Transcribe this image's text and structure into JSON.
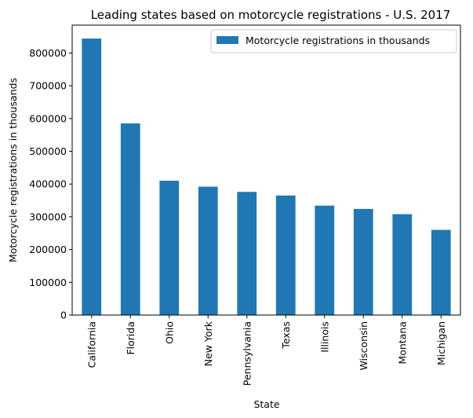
{
  "chart_data": {
    "type": "bar",
    "title": "Leading states based on motorcycle registrations - U.S. 2017",
    "xlabel": "State",
    "ylabel": "Motorcycle registrations in thousands",
    "categories": [
      "California",
      "Florida",
      "Ohio",
      "New York",
      "Pennsylvania",
      "Texas",
      "Illinois",
      "Wisconsin",
      "Montana",
      "Michigan"
    ],
    "series": [
      {
        "name": "Motorcycle registrations in thousands",
        "values": [
          844000,
          585000,
          410000,
          392000,
          376000,
          365000,
          334000,
          324000,
          308000,
          260000
        ],
        "color": "#1f77b4"
      }
    ],
    "ylim": [
      0,
      885000
    ],
    "yticks": [
      0,
      100000,
      200000,
      300000,
      400000,
      500000,
      600000,
      700000,
      800000
    ],
    "grid": false,
    "legend_position": "top-right",
    "label_rotation": "vertical"
  }
}
